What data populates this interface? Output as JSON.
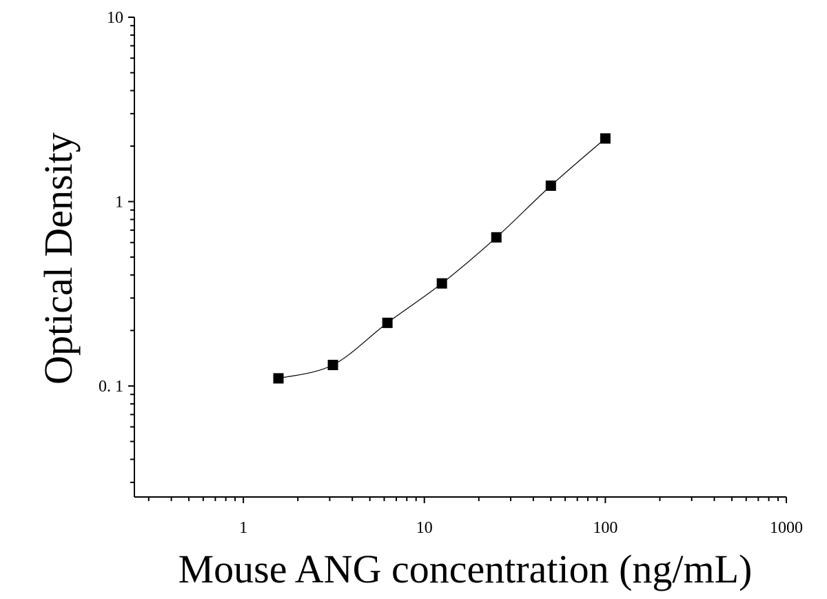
{
  "chart_data": {
    "type": "scatter",
    "x_scale": "log",
    "y_scale": "log",
    "xlabel": "Mouse ANG concentration (ng/mL)",
    "ylabel": "Optical Density",
    "xlim": [
      0.25,
      1000
    ],
    "ylim": [
      0.025,
      10
    ],
    "x_ticks": [
      {
        "value": 1,
        "label": "1"
      },
      {
        "value": 10,
        "label": "10"
      },
      {
        "value": 100,
        "label": "100"
      },
      {
        "value": 1000,
        "label": "1000"
      }
    ],
    "y_ticks": [
      {
        "value": 0.1,
        "label": "0. 1"
      },
      {
        "value": 1,
        "label": "1"
      },
      {
        "value": 10,
        "label": "10"
      }
    ],
    "grid": false,
    "legend": "none",
    "marker": "square",
    "color": "#000000",
    "series": [
      {
        "points": [
          {
            "x": 1.5625,
            "y": 0.11
          },
          {
            "x": 3.125,
            "y": 0.13
          },
          {
            "x": 6.25,
            "y": 0.22
          },
          {
            "x": 12.5,
            "y": 0.36
          },
          {
            "x": 25,
            "y": 0.64
          },
          {
            "x": 50,
            "y": 1.22
          },
          {
            "x": 100,
            "y": 2.2
          }
        ]
      }
    ],
    "fit_curve": true
  }
}
